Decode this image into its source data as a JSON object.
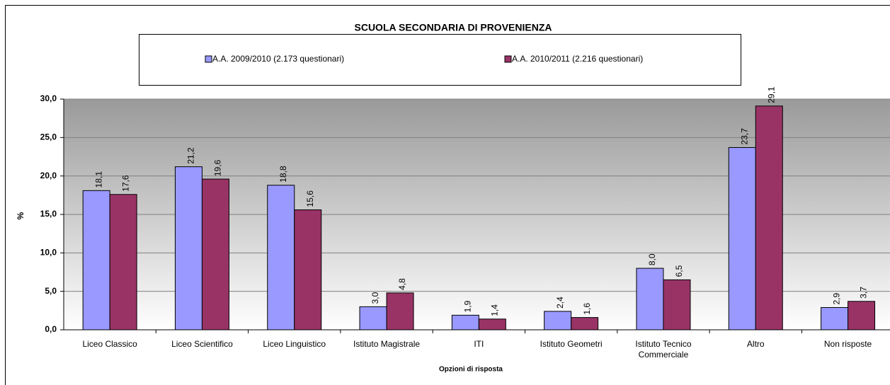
{
  "chart_data": {
    "type": "bar",
    "title": "SCUOLA SECONDARIA DI PROVENIENZA",
    "x_label": "Opzioni di risposta",
    "y_label": "%",
    "categories": [
      "Liceo Classico",
      "Liceo Scientifico",
      "Liceo Linguistico",
      "Istituto Magistrale",
      "ITI",
      "Istituto Geometri",
      "Istituto Tecnico Commerciale",
      "Altro",
      "Non risposte"
    ],
    "series": [
      {
        "name": "A.A. 2009/2010 (2.173 questionari)",
        "color": "#9999ff",
        "values": [
          18.1,
          21.2,
          18.8,
          3.0,
          1.9,
          2.4,
          8.0,
          23.7,
          2.9
        ],
        "value_labels": [
          "18,1",
          "21,2",
          "18,8",
          "3,0",
          "1,9",
          "2,4",
          "8,0",
          "23,7",
          "2,9"
        ]
      },
      {
        "name": "A.A. 2010/2011 (2.216 questionari)",
        "color": "#993366",
        "values": [
          17.6,
          19.6,
          15.6,
          4.8,
          1.4,
          1.6,
          6.5,
          29.1,
          3.7
        ],
        "value_labels": [
          "17,6",
          "19,6",
          "15,6",
          "4,8",
          "1,4",
          "1,6",
          "6,5",
          "29,1",
          "3,7"
        ]
      }
    ],
    "ylim": [
      0,
      30
    ],
    "yticks": [
      {
        "value": 0,
        "label": "0,0"
      },
      {
        "value": 5,
        "label": "5,0"
      },
      {
        "value": 10,
        "label": "10,0"
      },
      {
        "value": 15,
        "label": "15,0"
      },
      {
        "value": 20,
        "label": "20,0"
      },
      {
        "value": 25,
        "label": "25,0"
      },
      {
        "value": 30,
        "label": "30,0"
      }
    ],
    "grid": true
  }
}
